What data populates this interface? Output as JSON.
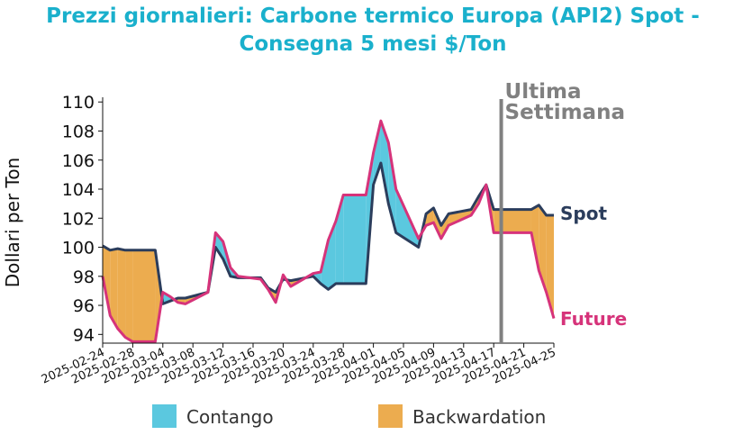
{
  "chart_data": {
    "type": "line",
    "title_line1": "Prezzi giornalieri: Carbone termico Europa (API2) Spot -",
    "title_line2": "Consegna 5 mesi $/Ton",
    "ylabel": "Dollari per Ton",
    "xlabel": "",
    "ylim": [
      93.4,
      110.2
    ],
    "xlim": [
      "2025-02-24",
      "2025-04-25"
    ],
    "yticks": [
      94,
      96,
      98,
      100,
      102,
      104,
      106,
      108,
      110
    ],
    "xticks": [
      "2025-02-24",
      "2025-02-28",
      "2025-03-04",
      "2025-03-08",
      "2025-03-12",
      "2025-03-16",
      "2025-03-20",
      "2025-03-24",
      "2025-03-28",
      "2025-04-01",
      "2025-04-05",
      "2025-04-09",
      "2025-04-13",
      "2025-04-17",
      "2025-04-21",
      "2025-04-25"
    ],
    "marker": {
      "date": "2025-04-18",
      "label_line1": "Ultima",
      "label_line2": "Settimana",
      "color": "#808080"
    },
    "series": [
      {
        "name": "Spot",
        "color": "#2b3d5c",
        "points": [
          [
            "2025-02-24",
            100.1
          ],
          [
            "2025-02-25",
            99.8
          ],
          [
            "2025-02-26",
            99.9
          ],
          [
            "2025-02-27",
            99.8
          ],
          [
            "2025-02-28",
            99.8
          ],
          [
            "2025-03-03",
            99.8
          ],
          [
            "2025-03-04",
            96.1
          ],
          [
            "2025-03-05",
            96.3
          ],
          [
            "2025-03-06",
            96.5
          ],
          [
            "2025-03-07",
            96.5
          ],
          [
            "2025-03-10",
            96.9
          ],
          [
            "2025-03-11",
            100.0
          ],
          [
            "2025-03-12",
            99.2
          ],
          [
            "2025-03-13",
            98.0
          ],
          [
            "2025-03-14",
            97.9
          ],
          [
            "2025-03-17",
            97.9
          ],
          [
            "2025-03-18",
            97.2
          ],
          [
            "2025-03-19",
            96.9
          ],
          [
            "2025-03-20",
            97.8
          ],
          [
            "2025-03-21",
            97.7
          ],
          [
            "2025-03-24",
            98.0
          ],
          [
            "2025-03-25",
            97.5
          ],
          [
            "2025-03-26",
            97.1
          ],
          [
            "2025-03-27",
            97.5
          ],
          [
            "2025-03-28",
            97.5
          ],
          [
            "2025-03-31",
            97.5
          ],
          [
            "2025-04-01",
            104.3
          ],
          [
            "2025-04-02",
            105.8
          ],
          [
            "2025-04-03",
            103.0
          ],
          [
            "2025-04-04",
            101.0
          ],
          [
            "2025-04-07",
            100.0
          ],
          [
            "2025-04-08",
            102.3
          ],
          [
            "2025-04-09",
            102.7
          ],
          [
            "2025-04-10",
            101.5
          ],
          [
            "2025-04-11",
            102.3
          ],
          [
            "2025-04-14",
            102.6
          ],
          [
            "2025-04-15",
            103.5
          ],
          [
            "2025-04-16",
            104.3
          ],
          [
            "2025-04-17",
            102.6
          ],
          [
            "2025-04-22",
            102.6
          ],
          [
            "2025-04-23",
            102.9
          ],
          [
            "2025-04-24",
            102.2
          ],
          [
            "2025-04-25",
            102.2
          ]
        ]
      },
      {
        "name": "Future",
        "color": "#d6337a",
        "points": [
          [
            "2025-02-24",
            98.0
          ],
          [
            "2025-02-25",
            95.3
          ],
          [
            "2025-02-26",
            94.4
          ],
          [
            "2025-02-27",
            93.8
          ],
          [
            "2025-02-28",
            93.5
          ],
          [
            "2025-03-03",
            93.5
          ],
          [
            "2025-03-04",
            96.9
          ],
          [
            "2025-03-05",
            96.6
          ],
          [
            "2025-03-06",
            96.2
          ],
          [
            "2025-03-07",
            96.1
          ],
          [
            "2025-03-10",
            96.9
          ],
          [
            "2025-03-11",
            101.0
          ],
          [
            "2025-03-12",
            100.4
          ],
          [
            "2025-03-13",
            98.6
          ],
          [
            "2025-03-14",
            98.0
          ],
          [
            "2025-03-17",
            97.8
          ],
          [
            "2025-03-18",
            97.1
          ],
          [
            "2025-03-19",
            96.2
          ],
          [
            "2025-03-20",
            98.1
          ],
          [
            "2025-03-21",
            97.3
          ],
          [
            "2025-03-24",
            98.2
          ],
          [
            "2025-03-25",
            98.3
          ],
          [
            "2025-03-26",
            100.5
          ],
          [
            "2025-03-27",
            101.8
          ],
          [
            "2025-03-28",
            103.6
          ],
          [
            "2025-03-31",
            103.6
          ],
          [
            "2025-04-01",
            106.5
          ],
          [
            "2025-04-02",
            108.7
          ],
          [
            "2025-04-03",
            107.2
          ],
          [
            "2025-04-04",
            104.0
          ],
          [
            "2025-04-07",
            100.6
          ],
          [
            "2025-04-08",
            101.5
          ],
          [
            "2025-04-09",
            101.7
          ],
          [
            "2025-04-10",
            100.6
          ],
          [
            "2025-04-11",
            101.5
          ],
          [
            "2025-04-14",
            102.2
          ],
          [
            "2025-04-15",
            103.0
          ],
          [
            "2025-04-16",
            104.3
          ],
          [
            "2025-04-17",
            101.0
          ],
          [
            "2025-04-22",
            101.0
          ],
          [
            "2025-04-23",
            98.4
          ],
          [
            "2025-04-24",
            96.9
          ],
          [
            "2025-04-25",
            95.1
          ]
        ]
      }
    ],
    "fills": [
      {
        "name": "Contango",
        "color": "#5bc8df",
        "when": "Future above Spot"
      },
      {
        "name": "Backwardation",
        "color": "#ecac4f",
        "when": "Spot above Future"
      }
    ],
    "legend": "bottom",
    "grid": false
  }
}
